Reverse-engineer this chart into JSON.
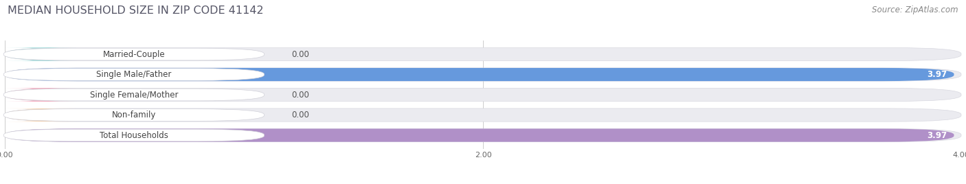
{
  "title": "MEDIAN HOUSEHOLD SIZE IN ZIP CODE 41142",
  "source": "Source: ZipAtlas.com",
  "categories": [
    "Married-Couple",
    "Single Male/Father",
    "Single Female/Mother",
    "Non-family",
    "Total Households"
  ],
  "values": [
    0.0,
    3.97,
    0.0,
    0.0,
    3.97
  ],
  "bar_colors": [
    "#74cbca",
    "#6699dd",
    "#f07898",
    "#f5c89a",
    "#b090c8"
  ],
  "background_color": "#ffffff",
  "bar_bg_color": "#ebebf0",
  "xlim_max": 4.0,
  "xticks": [
    0.0,
    2.0,
    4.0
  ],
  "xtick_labels": [
    "0.00",
    "2.00",
    "4.00"
  ],
  "title_fontsize": 11.5,
  "source_fontsize": 8.5,
  "label_fontsize": 8.5,
  "value_fontsize": 8.5
}
